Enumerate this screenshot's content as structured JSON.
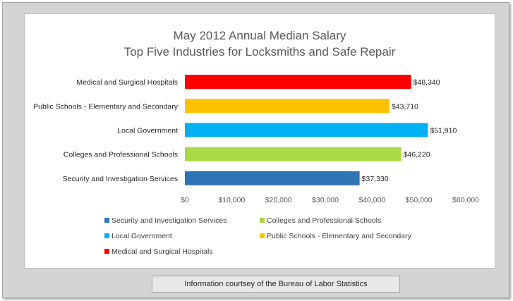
{
  "chart_data": {
    "type": "bar",
    "orientation": "horizontal",
    "title": "May 2012 Annual Median Salary",
    "subtitle": "Top Five Industries for Locksmiths and Safe Repair",
    "categories": [
      "Medical and Surgical Hospitals",
      "Public Schools - Elementary and Secondary",
      "Local Government",
      "Colleges and Professional Schools",
      "Security and Investigation Services"
    ],
    "values": [
      48340,
      43710,
      51910,
      46220,
      37330
    ],
    "value_labels": [
      "$48,340",
      "$43,710",
      "$51,910",
      "$46,220",
      "$37,330"
    ],
    "colors": [
      "#ff0000",
      "#ffc000",
      "#00b0f0",
      "#a9d943",
      "#2e75b6"
    ],
    "xlim": [
      0,
      60000
    ],
    "xticks": [
      0,
      10000,
      20000,
      30000,
      40000,
      50000,
      60000
    ],
    "xtick_labels": [
      "$0",
      "$10,000",
      "$20,000",
      "$30,000",
      "$40,000",
      "$50,000",
      "$60,000"
    ],
    "grid": false,
    "legend_position": "bottom",
    "legend": [
      {
        "label": "Security and Investigation Services",
        "color": "#2e75b6"
      },
      {
        "label": "Colleges and Professional Schools",
        "color": "#a9d943"
      },
      {
        "label": "Local Government",
        "color": "#00b0f0"
      },
      {
        "label": "Public Schools - Elementary and Secondary",
        "color": "#ffc000"
      },
      {
        "label": "Medical and Surgical Hospitals",
        "color": "#ff0000"
      }
    ]
  },
  "footer": {
    "text": "Information courtsey of the Bureau of Labor Statistics"
  }
}
